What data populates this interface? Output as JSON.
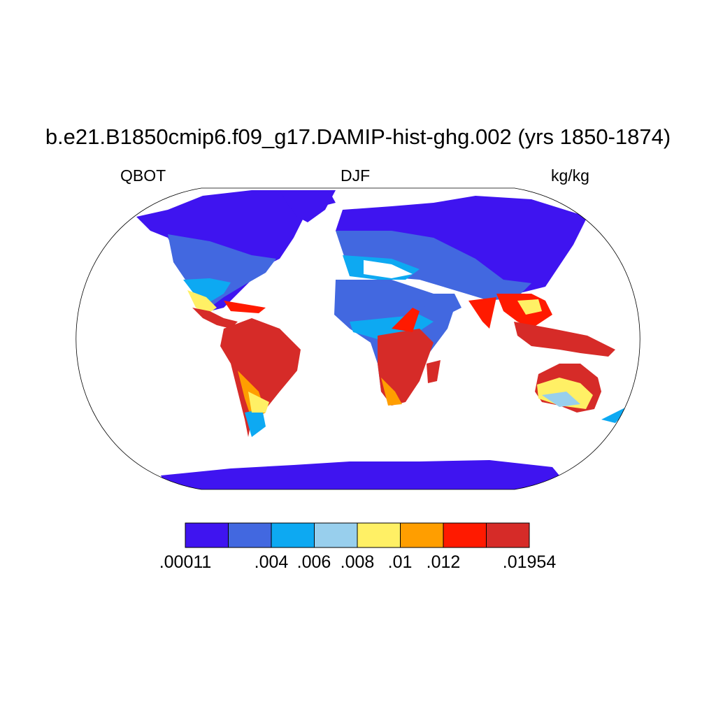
{
  "title": "b.e21.B1850cmip6.f09_g17.DAMIP-hist-ghg.002 (yrs 1850-1874)",
  "left_label": "QBOT",
  "center_label": "DJF",
  "right_label": "kg/kg",
  "colorbar": {
    "colors": [
      "#3f14f0",
      "#4268e0",
      "#0da9f2",
      "#98cfed",
      "#fff065",
      "#ff9e00",
      "#ff1a00",
      "#d62b28"
    ],
    "tick_labels": [
      ".00011",
      ".004",
      ".006",
      ".008",
      ".01",
      ".012",
      ".01954"
    ]
  }
}
